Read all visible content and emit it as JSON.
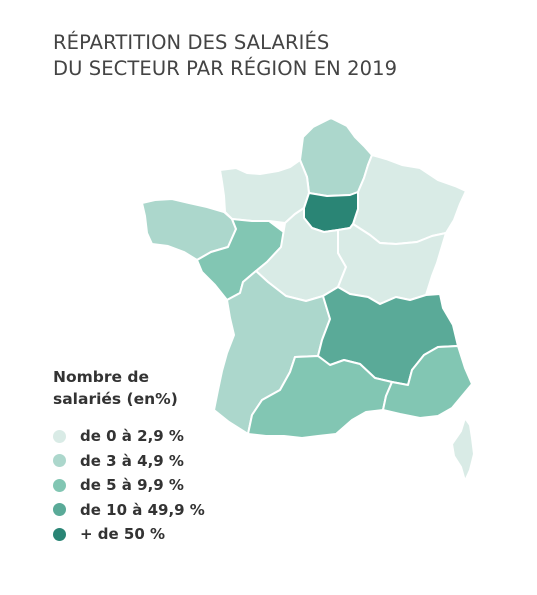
{
  "title": {
    "line1": "RÉPARTITION DES SALARIÉS",
    "line2": "DU SECTEUR PAR RÉGION EN 2019"
  },
  "legend": {
    "title_line1": "Nombre de",
    "title_line2": "salariés (en%)",
    "items": [
      {
        "label": "de 0 à 2,9 %",
        "color": "#d9ebe6"
      },
      {
        "label": "de 3 à 4,9 %",
        "color": "#acd7cc"
      },
      {
        "label": "de 5 à 9,9 %",
        "color": "#82c6b3"
      },
      {
        "label": "de 10 à 49,9 %",
        "color": "#5aaa98"
      },
      {
        "label": "+ de 50 %",
        "color": "#2a8575"
      }
    ]
  },
  "regions": [
    {
      "name": "Hauts-de-France",
      "class": 1
    },
    {
      "name": "Normandie",
      "class": 0
    },
    {
      "name": "Grand Est",
      "class": 0
    },
    {
      "name": "Île-de-France",
      "class": 4
    },
    {
      "name": "Bretagne",
      "class": 1
    },
    {
      "name": "Pays de la Loire",
      "class": 2
    },
    {
      "name": "Centre-Val de Loire",
      "class": 0
    },
    {
      "name": "Bourgogne-Franche-Comté",
      "class": 0
    },
    {
      "name": "Nouvelle-Aquitaine",
      "class": 1
    },
    {
      "name": "Auvergne-Rhône-Alpes",
      "class": 3
    },
    {
      "name": "Occitanie",
      "class": 2
    },
    {
      "name": "Provence-Alpes-Côte d'Azur",
      "class": 2
    },
    {
      "name": "Corse",
      "class": 0
    }
  ]
}
